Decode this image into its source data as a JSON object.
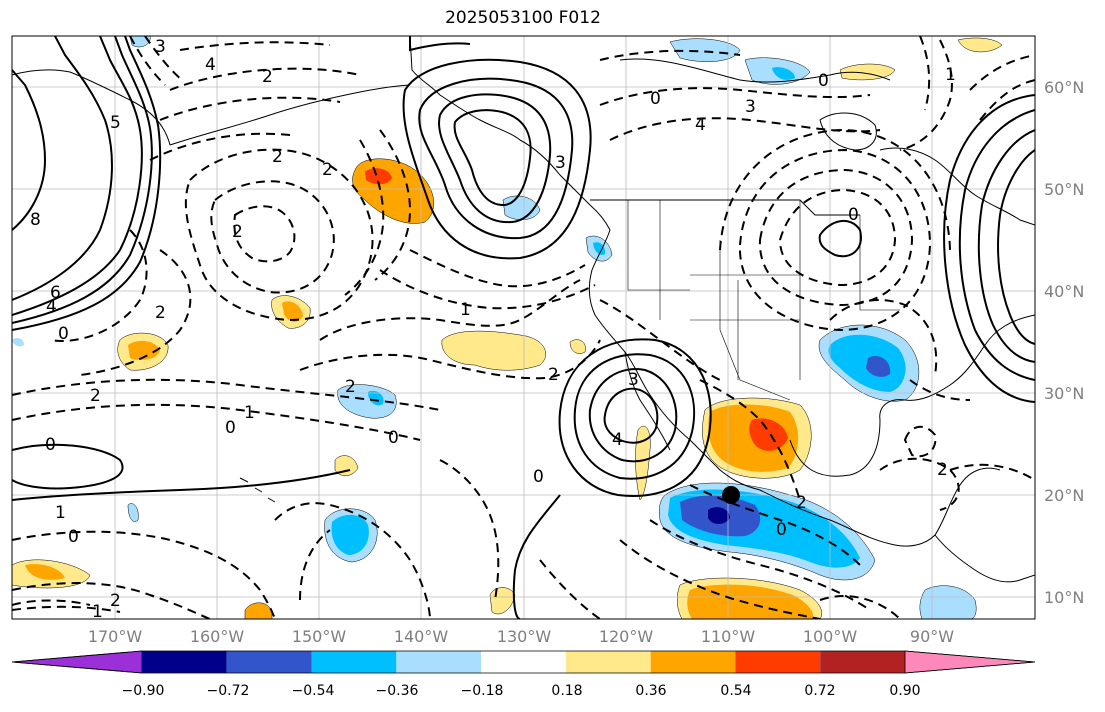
{
  "title": "2025053100 F012",
  "colors": {
    "land": "#000000",
    "grid": "#bbbbbb",
    "contour": "#000000"
  },
  "lat_labels": [
    "60°N",
    "50°N",
    "40°N",
    "30°N",
    "20°N",
    "10°N"
  ],
  "lon_labels": [
    "170°W",
    "160°W",
    "150°W",
    "140°W",
    "130°W",
    "120°W",
    "110°W",
    "100°W",
    "90°W"
  ],
  "colorbar": {
    "bins": [
      {
        "color": "#9b30d9",
        "name": "lt -0.90"
      },
      {
        "color": "#00008b",
        "name": "-0.90 to -0.72"
      },
      {
        "color": "#3355cc",
        "name": "-0.72 to -0.54"
      },
      {
        "color": "#00bfff",
        "name": "-0.54 to -0.36"
      },
      {
        "color": "#aadeff",
        "name": "-0.36 to -0.18"
      },
      {
        "color": "#ffffff",
        "name": "-0.18 to 0.18"
      },
      {
        "color": "#ffe98a",
        "name": "0.18 to 0.36"
      },
      {
        "color": "#ffa500",
        "name": "0.36 to 0.54"
      },
      {
        "color": "#ff3c00",
        "name": "0.54 to 0.72"
      },
      {
        "color": "#b22222",
        "name": "0.72 to 0.90"
      },
      {
        "color": "#ff88bb",
        "name": "gt 0.90"
      }
    ],
    "tick_labels": [
      "−0.90",
      "−0.72",
      "−0.54",
      "−0.36",
      "−0.18",
      "0.18",
      "0.36",
      "0.54",
      "0.72",
      "0.90"
    ]
  },
  "contour_labels": [
    "8",
    "6",
    "4",
    "0",
    "2",
    "2",
    "0",
    "1",
    "0",
    "2",
    "1",
    "3",
    "4",
    "2",
    "2",
    "2",
    "2",
    "1",
    "2",
    "1",
    "0",
    "0",
    "2",
    "3",
    "4",
    "0",
    "5",
    "3",
    "4",
    "0",
    "0",
    "3",
    "2",
    "0",
    "0",
    "2",
    "1"
  ],
  "shaded_anomalies": [
    {
      "region": "Gulf of Alaska",
      "sign": "positive",
      "peak": "0.72"
    },
    {
      "region": "Baja California / Mexico",
      "sign": "positive",
      "peak": "0.72"
    },
    {
      "region": "West of Mexico",
      "sign": "negative",
      "peak": "-0.90"
    },
    {
      "region": "Southern Plains US",
      "sign": "negative",
      "peak": "-0.72"
    },
    {
      "region": "Central Pacific",
      "sign": "negative",
      "peak": "-0.54"
    }
  ]
}
